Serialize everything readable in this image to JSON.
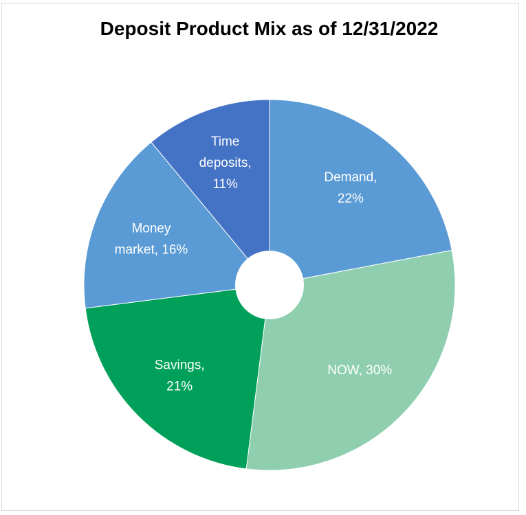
{
  "chart_data": {
    "type": "pie",
    "title": "Deposit Product Mix as of 12/31/2022",
    "slices": [
      {
        "name": "Demand",
        "value": 22,
        "color": "#5b9bd5",
        "label_lines": [
          "Demand,",
          "22%"
        ]
      },
      {
        "name": "NOW",
        "value": 30,
        "color": "#8fcfb0",
        "label_lines": [
          "NOW, 30%"
        ]
      },
      {
        "name": "Savings",
        "value": 21,
        "color": "#00a05a",
        "label_lines": [
          "Savings,",
          "21%"
        ]
      },
      {
        "name": "Money market",
        "value": 16,
        "color": "#5b9bd5",
        "label_lines": [
          "Money",
          "market, 16%"
        ]
      },
      {
        "name": "Time deposits",
        "value": 11,
        "color": "#4472c4",
        "label_lines": [
          "Time",
          "deposits,",
          "11%"
        ]
      }
    ],
    "hole": true,
    "legend": "none"
  }
}
